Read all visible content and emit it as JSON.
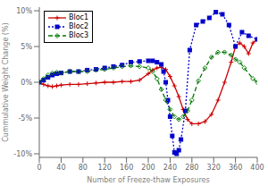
{
  "chart_data": {
    "type": "line",
    "xlabel": "Number of Freeze-thaw Exposures",
    "ylabel": "Cummulative Weight Change (%)",
    "xlim": [
      0,
      400
    ],
    "xticks": [
      0,
      40,
      80,
      120,
      160,
      200,
      240,
      280,
      320,
      360,
      400
    ],
    "ylim": [
      -10.5,
      10.5
    ],
    "yticks": [
      {
        "value": -10,
        "label": "-10%"
      },
      {
        "value": -5,
        "label": "-5%"
      },
      {
        "value": 0,
        "label": "0%"
      },
      {
        "value": 5,
        "label": "5%"
      },
      {
        "value": 10,
        "label": "10%"
      }
    ],
    "grid": false,
    "legend": "upper left",
    "series": [
      {
        "name": "Bloc1",
        "color": "#cc0000",
        "marker": "plus",
        "line_style": "solid",
        "x": [
          0,
          8,
          16,
          24,
          32,
          40,
          56,
          72,
          88,
          104,
          120,
          136,
          152,
          168,
          184,
          200,
          208,
          216,
          224,
          232,
          240,
          248,
          256,
          264,
          272,
          280,
          292,
          304,
          316,
          328,
          340,
          352,
          360,
          368,
          376,
          384,
          392,
          400
        ],
        "values": [
          0.0,
          -0.3,
          -0.5,
          -0.6,
          -0.5,
          -0.4,
          -0.3,
          -0.3,
          -0.2,
          -0.1,
          0.0,
          0.0,
          0.1,
          0.1,
          0.3,
          1.2,
          1.7,
          2.0,
          2.1,
          1.8,
          0.8,
          -0.5,
          -2.0,
          -3.8,
          -5.2,
          -5.8,
          -5.8,
          -5.5,
          -4.5,
          -2.5,
          0.0,
          2.8,
          5.0,
          5.5,
          5.0,
          4.0,
          5.5,
          6.0
        ]
      },
      {
        "name": "Bloc2",
        "color": "#0000cc",
        "marker": "square",
        "line_style": "dotted",
        "x": [
          0,
          8,
          16,
          24,
          32,
          40,
          56,
          72,
          88,
          104,
          120,
          136,
          152,
          168,
          184,
          200,
          208,
          216,
          224,
          228,
          232,
          236,
          240,
          244,
          248,
          252,
          256,
          260,
          268,
          276,
          288,
          300,
          312,
          324,
          336,
          348,
          360,
          372,
          384,
          400
        ],
        "values": [
          0.0,
          0.3,
          0.7,
          1.0,
          1.2,
          1.3,
          1.5,
          1.5,
          1.7,
          1.8,
          2.0,
          2.2,
          2.4,
          2.8,
          2.9,
          3.0,
          3.0,
          2.8,
          2.5,
          1.5,
          0.0,
          -2.5,
          -4.8,
          -7.5,
          -9.8,
          -10.0,
          -9.5,
          -8.0,
          -4.0,
          4.5,
          8.0,
          8.5,
          9.0,
          9.8,
          9.5,
          8.0,
          5.0,
          7.0,
          6.5,
          6.0
        ]
      },
      {
        "name": "Bloc3",
        "color": "#007700",
        "marker": "diamond",
        "line_style": "dashed",
        "x": [
          0,
          8,
          16,
          24,
          32,
          40,
          56,
          72,
          88,
          104,
          120,
          136,
          152,
          168,
          184,
          200,
          208,
          216,
          224,
          232,
          240,
          248,
          256,
          264,
          272,
          280,
          292,
          304,
          316,
          328,
          340,
          352,
          360,
          368,
          376,
          392,
          400
        ],
        "values": [
          0.0,
          0.5,
          1.0,
          1.3,
          1.4,
          1.3,
          1.5,
          1.5,
          1.5,
          1.7,
          1.8,
          2.0,
          2.2,
          2.3,
          2.2,
          2.0,
          1.5,
          0.5,
          -1.0,
          -2.5,
          -3.8,
          -4.8,
          -5.2,
          -4.8,
          -4.0,
          -2.5,
          0.2,
          2.0,
          3.5,
          4.2,
          4.2,
          3.8,
          3.2,
          2.8,
          2.0,
          0.5,
          0.0
        ]
      }
    ]
  }
}
